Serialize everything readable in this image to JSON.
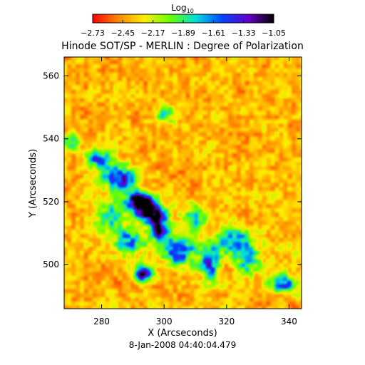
{
  "chart_data": {
    "type": "heatmap",
    "title": "Hinode SOT/SP - MERLIN : Degree of Polarization",
    "xlabel": "X (Arcseconds)",
    "ylabel": "Y (Arcseconds)",
    "timestamp": "8-Jan-2008 04:40:04.479",
    "xlim": [
      268,
      344
    ],
    "ylim": [
      486,
      566
    ],
    "xticks": [
      280,
      300,
      320,
      340
    ],
    "xtick_labels": [
      "280",
      "300",
      "320",
      "340"
    ],
    "yticks": [
      500,
      520,
      540,
      560
    ],
    "ytick_labels": [
      "500",
      "520",
      "540",
      "560"
    ],
    "colorbar": {
      "label_base": "Log",
      "label_sub": "10",
      "range": [
        -2.73,
        -1.05
      ],
      "ticks": [
        -2.73,
        -2.45,
        -2.17,
        -1.89,
        -1.61,
        -1.33,
        -1.05
      ],
      "tick_labels": [
        "−2.73",
        "−2.45",
        "−2.17",
        "−1.89",
        "−1.61",
        "−1.33",
        "−1.05"
      ]
    },
    "colormap": [
      "#ff0000",
      "#ff8800",
      "#ffee00",
      "#66ff00",
      "#00dddd",
      "#0044ff",
      "#6600cc",
      "#000000"
    ],
    "features": [
      {
        "x": 292,
        "y": 520,
        "amplitude": 1.3,
        "sigma_x": 3.0,
        "sigma_y": 2.0
      },
      {
        "x": 296,
        "y": 516,
        "amplitude": 1.1,
        "sigma_x": 3.0,
        "sigma_y": 2.0
      },
      {
        "x": 299,
        "y": 511,
        "amplitude": 0.9,
        "sigma_x": 2.0,
        "sigma_y": 2.5
      },
      {
        "x": 286,
        "y": 527,
        "amplitude": 0.7,
        "sigma_x": 4.0,
        "sigma_y": 3.0
      },
      {
        "x": 279,
        "y": 534,
        "amplitude": 0.6,
        "sigma_x": 3.0,
        "sigma_y": 2.0
      },
      {
        "x": 293,
        "y": 497,
        "amplitude": 0.8,
        "sigma_x": 2.0,
        "sigma_y": 2.0
      },
      {
        "x": 305,
        "y": 504,
        "amplitude": 0.65,
        "sigma_x": 4.0,
        "sigma_y": 3.0
      },
      {
        "x": 315,
        "y": 500,
        "amplitude": 0.75,
        "sigma_x": 2.0,
        "sigma_y": 3.5
      },
      {
        "x": 322,
        "y": 507,
        "amplitude": 0.6,
        "sigma_x": 4.0,
        "sigma_y": 3.0
      },
      {
        "x": 327,
        "y": 501,
        "amplitude": 0.55,
        "sigma_x": 3.0,
        "sigma_y": 3.0
      },
      {
        "x": 338,
        "y": 494,
        "amplitude": 0.6,
        "sigma_x": 3.0,
        "sigma_y": 2.0
      },
      {
        "x": 289,
        "y": 507,
        "amplitude": 0.55,
        "sigma_x": 4.0,
        "sigma_y": 3.0
      },
      {
        "x": 283,
        "y": 515,
        "amplitude": 0.45,
        "sigma_x": 3.0,
        "sigma_y": 4.0
      },
      {
        "x": 310,
        "y": 515,
        "amplitude": 0.4,
        "sigma_x": 3.0,
        "sigma_y": 3.0
      },
      {
        "x": 270,
        "y": 539,
        "amplitude": 0.45,
        "sigma_x": 2.0,
        "sigma_y": 2.0
      },
      {
        "x": 300,
        "y": 548,
        "amplitude": 0.35,
        "sigma_x": 2.0,
        "sigma_y": 2.0
      }
    ]
  }
}
